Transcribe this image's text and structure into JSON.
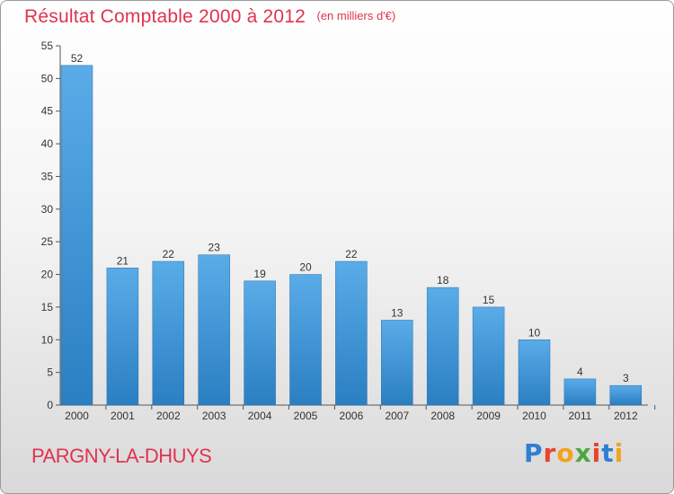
{
  "header": {
    "title": "Résultat Comptable 2000 à 2012",
    "subtitle": "(en milliers d'€)"
  },
  "footer": {
    "commune": "PARGNY-LA-DHUYS",
    "logo_text": "Proxiti",
    "logo_colors": [
      "#2f7fd1",
      "#e8442e",
      "#f2a31b",
      "#4aa83c",
      "#e8442e",
      "#2f7fd1",
      "#f2a31b"
    ]
  },
  "colors": {
    "bar_light": "#5aace8",
    "bar_dark": "#2a7fc2",
    "accent": "#e0334f",
    "grid": "#bdbdbd"
  },
  "chart_data": {
    "type": "bar",
    "categories": [
      "2000",
      "2001",
      "2002",
      "2003",
      "2004",
      "2005",
      "2006",
      "2007",
      "2008",
      "2009",
      "2010",
      "2011",
      "2012"
    ],
    "values": [
      52,
      21,
      22,
      23,
      19,
      20,
      22,
      13,
      18,
      15,
      10,
      4,
      3
    ],
    "title": "Résultat Comptable 2000 à 2012",
    "subtitle": "(en milliers d'€)",
    "xlabel": "",
    "ylabel": "",
    "ylim": [
      0,
      55
    ],
    "yticks": [
      0,
      5,
      10,
      15,
      20,
      25,
      30,
      35,
      40,
      45,
      50,
      55
    ],
    "grid": false,
    "data_labels": true
  }
}
